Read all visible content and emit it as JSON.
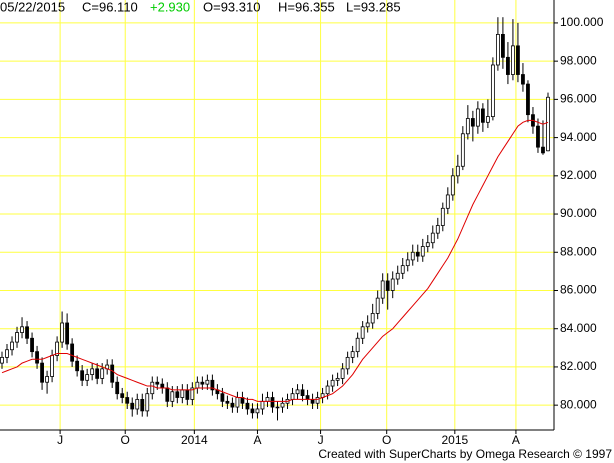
{
  "chart_data": {
    "type": "candlestick",
    "header": {
      "date": "05/22/2015",
      "close": "C=96.110",
      "change": "+2.930",
      "change_color": "#00cc00",
      "open": "O=93.310",
      "high": "H=96.355",
      "low": "L=93.285"
    },
    "credit": "Created with SuperCharts by Omega Research © 1997",
    "grid": true,
    "grid_color": "#ffff40",
    "up_color": "#ffffff",
    "down_color": "#000000",
    "ylim": [
      78.7,
      101.2
    ],
    "yticks": [
      {
        "value": 80,
        "label": "80.000"
      },
      {
        "value": 82,
        "label": "82.000"
      },
      {
        "value": 84,
        "label": "84.000"
      },
      {
        "value": 86,
        "label": "86.000"
      },
      {
        "value": 88,
        "label": "88.000"
      },
      {
        "value": 90,
        "label": "90.000"
      },
      {
        "value": 92,
        "label": "92.000"
      },
      {
        "value": 94,
        "label": "94.000"
      },
      {
        "value": 96,
        "label": "96.000"
      },
      {
        "value": 98,
        "label": "98.000"
      },
      {
        "value": 100,
        "label": "100.000"
      }
    ],
    "xlim": [
      -0.4,
      110.2
    ],
    "xticks": [
      {
        "value": 11.6,
        "label": "J"
      },
      {
        "value": 24.6,
        "label": "O"
      },
      {
        "value": 38.4,
        "label": "2014"
      },
      {
        "value": 51,
        "label": "A"
      },
      {
        "value": 63.6,
        "label": "J"
      },
      {
        "value": 76.8,
        "label": "O"
      },
      {
        "value": 90.4,
        "label": "2015"
      },
      {
        "value": 102.6,
        "label": "A"
      }
    ],
    "open": [
      82.2,
      82.5,
      82.9,
      83.3,
      83.8,
      84.1,
      83.5,
      82.8,
      82.2,
      81.2,
      81.5,
      82.6,
      83.3,
      84.3,
      83.2,
      82.3,
      81.8,
      81.3,
      81.6,
      81.9,
      81.4,
      81.9,
      82.1,
      81.2,
      80.6,
      80.4,
      80.1,
      79.8,
      80.3,
      79.7,
      80.6,
      81.2,
      81.1,
      80.9,
      80.2,
      80.7,
      80.4,
      80.8,
      80.3,
      80.9,
      81.2,
      81.1,
      81.3,
      80.8,
      80.6,
      80.2,
      80.1,
      79.9,
      80.4,
      80.1,
      79.8,
      79.6,
      79.8,
      80.2,
      80.4,
      79.9,
      79.9,
      80.1,
      80.3,
      80.6,
      80.8,
      80.5,
      80.3,
      80.1,
      80.4,
      80.6,
      81.0,
      81.3,
      81.4,
      81.9,
      82.5,
      82.8,
      83.5,
      84.1,
      84.3,
      84.8,
      85.6,
      86.5,
      86.0,
      86.6,
      86.9,
      87.3,
      87.6,
      88.0,
      87.8,
      88.3,
      88.5,
      89.0,
      89.4,
      90.3,
      91.0,
      92.0,
      92.5,
      94.2,
      95.0,
      94.6,
      95.5,
      94.8,
      95.1,
      97.8,
      99.4,
      98.2,
      97.3,
      98.8,
      97.3,
      96.8,
      95.2,
      94.6,
      93.5,
      93.31
    ],
    "high": [
      82.8,
      83.2,
      83.6,
      84.1,
      84.6,
      84.4,
      83.8,
      83.1,
      82.5,
      81.8,
      82.9,
      83.6,
      84.9,
      84.8,
      83.5,
      82.6,
      82.1,
      81.9,
      82.2,
      82.2,
      82.2,
      82.4,
      82.4,
      81.5,
      80.9,
      80.7,
      80.4,
      80.6,
      80.6,
      80.9,
      81.5,
      81.5,
      81.4,
      81.2,
      81.0,
      81.0,
      81.1,
      81.1,
      81.2,
      81.5,
      81.5,
      81.6,
      81.6,
      81.1,
      80.9,
      80.5,
      80.4,
      80.7,
      80.7,
      80.4,
      80.1,
      80.1,
      80.6,
      80.7,
      80.7,
      80.2,
      80.4,
      80.6,
      80.9,
      81.1,
      81.1,
      80.8,
      80.6,
      80.7,
      80.9,
      81.3,
      81.6,
      81.7,
      82.2,
      82.8,
      83.1,
      83.8,
      84.4,
      84.7,
      85.3,
      86.0,
      86.9,
      86.9,
      87.0,
      87.3,
      87.7,
      88.0,
      88.4,
      88.4,
      88.7,
      88.9,
      89.4,
      89.8,
      90.6,
      91.4,
      92.4,
      93.1,
      94.6,
      95.7,
      95.4,
      95.9,
      95.8,
      96.0,
      98.2,
      100.3,
      100.3,
      99.0,
      100.2,
      100.0,
      97.9,
      97.0,
      95.6,
      95.0,
      94.9,
      96.355
    ],
    "low": [
      81.9,
      82.2,
      82.6,
      83.0,
      83.5,
      83.2,
      82.5,
      81.9,
      80.8,
      80.6,
      81.2,
      82.3,
      83.0,
      82.9,
      82.0,
      81.5,
      81.0,
      81.0,
      81.3,
      81.1,
      81.1,
      81.6,
      80.9,
      80.3,
      80.1,
      79.8,
      79.4,
      79.5,
      79.4,
      79.4,
      80.3,
      80.8,
      80.6,
      79.9,
      79.9,
      80.1,
      80.1,
      80.0,
      80.0,
      80.6,
      80.8,
      80.8,
      80.5,
      80.3,
      79.9,
      79.8,
      79.6,
      79.6,
      79.8,
      79.5,
      79.3,
      79.3,
      79.5,
      79.9,
      79.6,
      79.2,
      79.6,
      79.8,
      80.0,
      80.3,
      80.2,
      80.0,
      79.8,
      79.8,
      80.1,
      80.3,
      80.7,
      81.0,
      81.1,
      81.6,
      82.2,
      82.5,
      83.2,
      83.8,
      84.0,
      84.5,
      85.3,
      85.0,
      85.6,
      86.3,
      86.6,
      87.0,
      87.3,
      87.5,
      87.5,
      88.0,
      88.2,
      88.7,
      89.1,
      90.0,
      90.7,
      91.6,
      92.3,
      93.9,
      93.8,
      94.2,
      94.3,
      94.5,
      94.9,
      97.5,
      97.6,
      96.8,
      97.0,
      96.9,
      96.4,
      94.8,
      94.2,
      93.2,
      93.1,
      93.285
    ],
    "close": [
      82.5,
      82.9,
      83.3,
      83.8,
      84.1,
      83.5,
      82.8,
      82.2,
      81.2,
      81.5,
      82.6,
      83.3,
      84.3,
      83.2,
      82.3,
      81.8,
      81.3,
      81.6,
      81.9,
      81.4,
      81.9,
      82.1,
      81.2,
      80.6,
      80.4,
      80.1,
      79.8,
      80.3,
      79.7,
      80.6,
      81.2,
      81.1,
      80.9,
      80.2,
      80.7,
      80.4,
      80.8,
      80.3,
      80.9,
      81.2,
      81.1,
      81.3,
      80.8,
      80.6,
      80.2,
      80.1,
      79.9,
      80.4,
      80.1,
      79.8,
      79.6,
      79.8,
      80.2,
      80.4,
      79.9,
      79.9,
      80.1,
      80.3,
      80.6,
      80.8,
      80.5,
      80.3,
      80.1,
      80.4,
      80.6,
      81.0,
      81.3,
      81.4,
      81.9,
      82.5,
      82.8,
      83.5,
      84.1,
      84.3,
      84.8,
      85.6,
      86.5,
      86.0,
      86.6,
      86.9,
      87.3,
      87.6,
      88.0,
      87.8,
      88.3,
      88.5,
      89.0,
      89.4,
      90.3,
      91.0,
      92.0,
      92.5,
      94.2,
      95.0,
      94.6,
      95.5,
      94.8,
      95.1,
      97.8,
      99.4,
      98.2,
      97.3,
      98.8,
      97.3,
      96.8,
      95.2,
      94.6,
      93.5,
      93.2,
      96.11
    ],
    "average": {
      "color": "#e00000",
      "values": [
        81.7,
        81.8,
        81.9,
        82.0,
        82.2,
        82.3,
        82.4,
        82.4,
        82.4,
        82.5,
        82.6,
        82.7,
        82.7,
        82.7,
        82.6,
        82.5,
        82.4,
        82.3,
        82.2,
        82.1,
        82.0,
        81.9,
        81.8,
        81.6,
        81.5,
        81.4,
        81.3,
        81.2,
        81.1,
        81.0,
        81.0,
        80.9,
        80.9,
        80.9,
        80.8,
        80.8,
        80.8,
        80.8,
        80.8,
        80.9,
        80.9,
        80.9,
        80.9,
        80.8,
        80.7,
        80.6,
        80.5,
        80.4,
        80.4,
        80.3,
        80.3,
        80.2,
        80.2,
        80.2,
        80.2,
        80.2,
        80.2,
        80.2,
        80.3,
        80.3,
        80.3,
        80.3,
        80.3,
        80.3,
        80.4,
        80.5,
        80.6,
        80.8,
        81.0,
        81.3,
        81.6,
        82.0,
        82.4,
        82.7,
        83.0,
        83.3,
        83.6,
        83.8,
        84.0,
        84.3,
        84.6,
        84.9,
        85.2,
        85.5,
        85.8,
        86.1,
        86.5,
        86.9,
        87.3,
        87.7,
        88.2,
        88.7,
        89.3,
        89.9,
        90.5,
        91.0,
        91.5,
        92.0,
        92.5,
        93.0,
        93.4,
        93.8,
        94.2,
        94.6,
        94.8,
        94.9,
        94.9,
        94.8,
        94.7,
        94.8
      ]
    }
  }
}
